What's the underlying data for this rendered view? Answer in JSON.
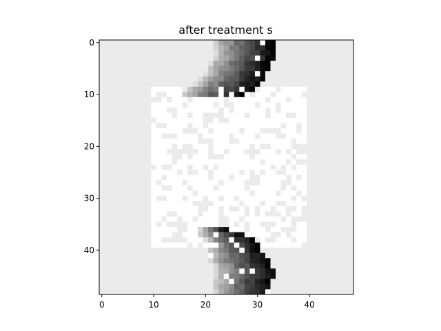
{
  "chart_data": {
    "type": "heatmap",
    "title": "after treatment s",
    "xlabel": "",
    "ylabel": "",
    "x_range": [
      -0.5,
      48.5
    ],
    "y_range": [
      -0.5,
      48.5
    ],
    "y_inverted": true,
    "x_ticks": [
      0,
      10,
      20,
      30,
      40
    ],
    "y_ticks": [
      0,
      10,
      20,
      30,
      40
    ],
    "colormap": "gray",
    "value_range": [
      0,
      1
    ],
    "grid": false,
    "background_value": 0.92,
    "background_rect": {
      "x0": 0,
      "x1": 48,
      "y0": 0,
      "y1": 48
    },
    "square_value": 1.0,
    "square_rect": {
      "x0": 10,
      "x1": 39,
      "y0": 9,
      "y1": 39
    },
    "square_gray_fraction": 0.28,
    "square_gray_value": 0.92,
    "top_streak": {
      "rows": [
        [
          0,
          22,
          33
        ],
        [
          1,
          22,
          33
        ],
        [
          2,
          22,
          33
        ],
        [
          3,
          22,
          33
        ],
        [
          4,
          21,
          32
        ],
        [
          5,
          21,
          32
        ],
        [
          6,
          20,
          31
        ],
        [
          7,
          19,
          31
        ],
        [
          8,
          18,
          30
        ],
        [
          9,
          17,
          29
        ],
        [
          10,
          16,
          27
        ]
      ],
      "light_value": 0.82,
      "dark_value": 0.02
    },
    "bottom_streak": {
      "rows": [
        [
          36,
          19,
          24
        ],
        [
          37,
          19,
          27
        ],
        [
          38,
          20,
          29
        ],
        [
          39,
          21,
          30
        ],
        [
          40,
          21,
          30
        ],
        [
          41,
          21,
          31
        ],
        [
          42,
          21,
          32
        ],
        [
          43,
          22,
          32
        ],
        [
          44,
          22,
          33
        ],
        [
          45,
          22,
          33
        ],
        [
          46,
          22,
          32
        ],
        [
          47,
          22,
          32
        ],
        [
          48,
          22,
          32
        ]
      ],
      "light_value": 0.82,
      "dark_value": 0.02
    }
  }
}
